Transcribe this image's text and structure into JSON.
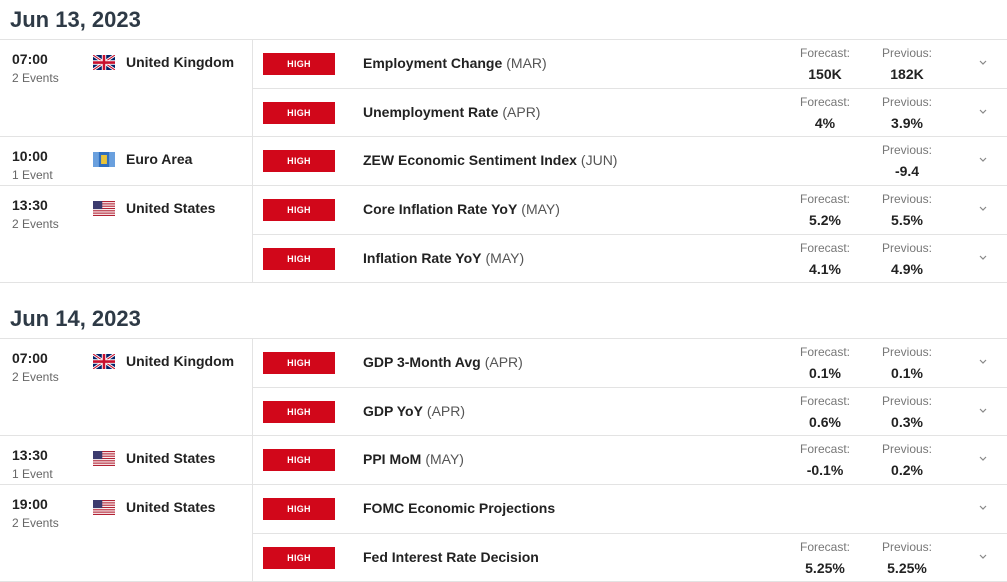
{
  "days": [
    {
      "date": "Jun 13, 2023",
      "groups": [
        {
          "time": "07:00",
          "count": "2 Events",
          "country": "United Kingdom",
          "flag": "uk-flag-icon",
          "events": [
            {
              "impact": "HIGH",
              "name": "Employment Change",
              "period": "(MAR)",
              "forecast_label": "Forecast:",
              "forecast": "150K",
              "previous_label": "Previous:",
              "previous": "182K"
            },
            {
              "impact": "HIGH",
              "name": "Unemployment Rate",
              "period": "(APR)",
              "forecast_label": "Forecast:",
              "forecast": "4%",
              "previous_label": "Previous:",
              "previous": "3.9%"
            }
          ]
        },
        {
          "time": "10:00",
          "count": "1 Event",
          "country": "Euro Area",
          "flag": "eu-flag-icon",
          "events": [
            {
              "impact": "HIGH",
              "name": "ZEW Economic Sentiment Index",
              "period": "(JUN)",
              "forecast_label": "",
              "forecast": "",
              "previous_label": "Previous:",
              "previous": "-9.4"
            }
          ]
        },
        {
          "time": "13:30",
          "count": "2 Events",
          "country": "United States",
          "flag": "us-flag-icon",
          "events": [
            {
              "impact": "HIGH",
              "name": "Core Inflation Rate YoY",
              "period": "(MAY)",
              "forecast_label": "Forecast:",
              "forecast": "5.2%",
              "previous_label": "Previous:",
              "previous": "5.5%"
            },
            {
              "impact": "HIGH",
              "name": "Inflation Rate YoY",
              "period": "(MAY)",
              "forecast_label": "Forecast:",
              "forecast": "4.1%",
              "previous_label": "Previous:",
              "previous": "4.9%"
            }
          ]
        }
      ]
    },
    {
      "date": "Jun 14, 2023",
      "groups": [
        {
          "time": "07:00",
          "count": "2 Events",
          "country": "United Kingdom",
          "flag": "uk-flag-icon",
          "events": [
            {
              "impact": "HIGH",
              "name": "GDP 3-Month Avg",
              "period": "(APR)",
              "forecast_label": "Forecast:",
              "forecast": "0.1%",
              "previous_label": "Previous:",
              "previous": "0.1%"
            },
            {
              "impact": "HIGH",
              "name": "GDP YoY",
              "period": "(APR)",
              "forecast_label": "Forecast:",
              "forecast": "0.6%",
              "previous_label": "Previous:",
              "previous": "0.3%"
            }
          ]
        },
        {
          "time": "13:30",
          "count": "1 Event",
          "country": "United States",
          "flag": "us-flag-icon",
          "events": [
            {
              "impact": "HIGH",
              "name": "PPI MoM",
              "period": "(MAY)",
              "forecast_label": "Forecast:",
              "forecast": "-0.1%",
              "previous_label": "Previous:",
              "previous": "0.2%"
            }
          ]
        },
        {
          "time": "19:00",
          "count": "2 Events",
          "country": "United States",
          "flag": "us-flag-icon",
          "events": [
            {
              "impact": "HIGH",
              "name": "FOMC Economic Projections",
              "period": "",
              "forecast_label": "",
              "forecast": "",
              "previous_label": "",
              "previous": ""
            },
            {
              "impact": "HIGH",
              "name": "Fed Interest Rate Decision",
              "period": "",
              "forecast_label": "Forecast:",
              "forecast": "5.25%",
              "previous_label": "Previous:",
              "previous": "5.25%"
            }
          ]
        }
      ]
    }
  ]
}
